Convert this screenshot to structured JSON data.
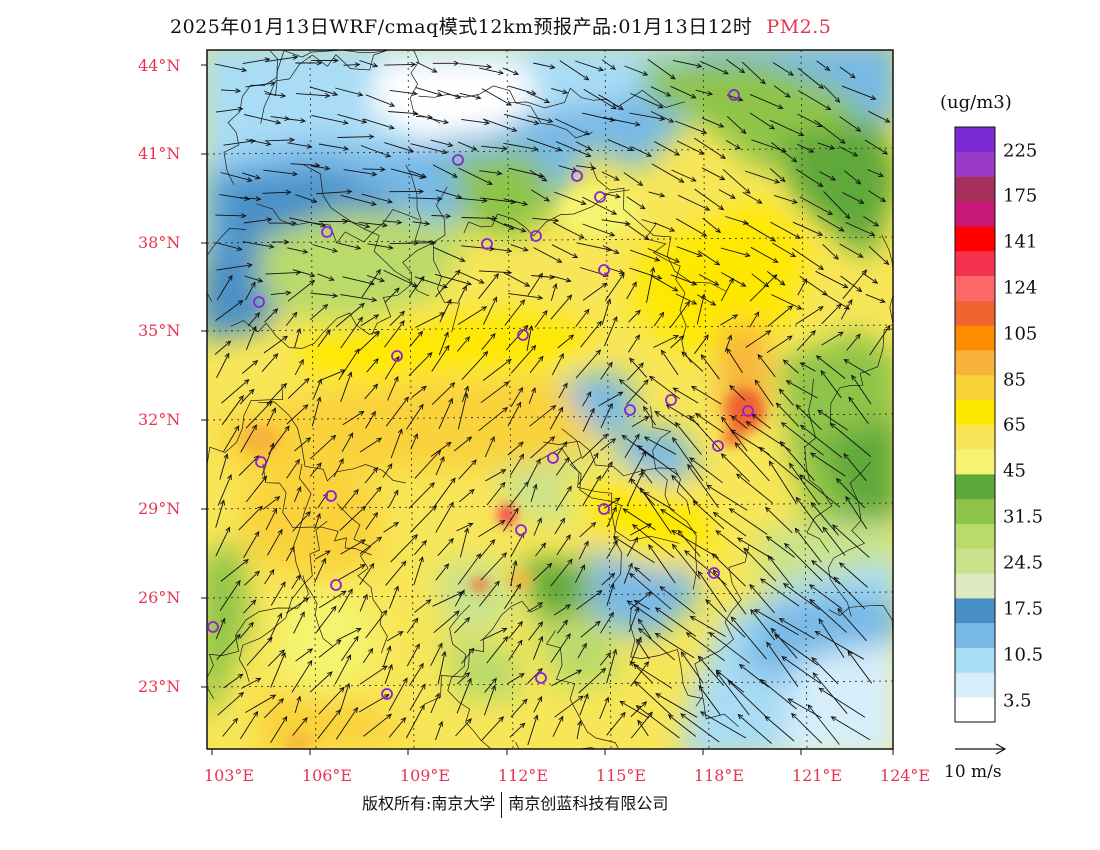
{
  "title": {
    "text": "2025年01月13日WRF/cmaq模式12km预报产品:01月13日12时",
    "pollutant": "PM2.5",
    "pollutant_color": "#e8344e"
  },
  "axes": {
    "lat_labels": [
      "44°N",
      "41°N",
      "38°N",
      "35°N",
      "32°N",
      "29°N",
      "26°N",
      "23°N"
    ],
    "lon_labels": [
      "103°E",
      "106°E",
      "109°E",
      "112°E",
      "115°E",
      "118°E",
      "121°E",
      "124°E"
    ],
    "label_color": "#e8344e"
  },
  "colorbar": {
    "unit": "(ug/m3)",
    "colors": [
      "#ffffff",
      "#d6eefa",
      "#a9dcf5",
      "#78b9e6",
      "#4a90c8",
      "#dfeac0",
      "#c9e38c",
      "#bada6a",
      "#8ec44a",
      "#5ea83a",
      "#f4f470",
      "#f8e658",
      "#ffe800",
      "#fad23a",
      "#f8b33a",
      "#ff8c00",
      "#f0642e",
      "#ff6868",
      "#f5334f",
      "#ff0000",
      "#c8187a",
      "#a82e5c",
      "#9a3ac8",
      "#7b2ad6"
    ],
    "labels": [
      "3.5",
      "10.5",
      "17.5",
      "24.5",
      "31.5",
      "45",
      "65",
      "85",
      "105",
      "124",
      "141",
      "175",
      "225"
    ]
  },
  "wind_reference": {
    "label": "10 m/s"
  },
  "footer": {
    "copyright": "版权所有:南京大学",
    "company": "南京创蓝科技有限公司"
  },
  "icons": [
    "city-marker-icon",
    "wind-arrow-icon"
  ]
}
